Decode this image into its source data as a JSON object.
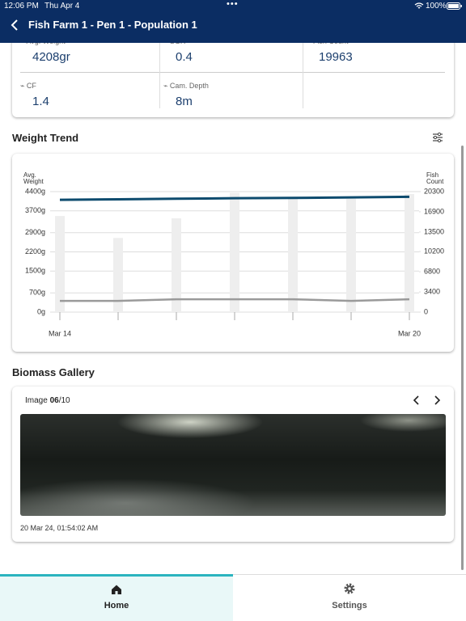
{
  "status_bar": {
    "time": "12:06 PM",
    "date": "Thu Apr 4",
    "battery": "100%"
  },
  "header": {
    "title": "Fish Farm 1 - Pen 1 - Population 1"
  },
  "metrics": [
    {
      "label": "Avg. Weight",
      "value": "4208gr"
    },
    {
      "label": "SGR",
      "value": "0.4"
    },
    {
      "label": "Fish Count",
      "value": "19963"
    },
    {
      "label": "CF",
      "value": "1.4"
    },
    {
      "label": "Cam. Depth",
      "value": "8m"
    }
  ],
  "weight_trend": {
    "title": "Weight Trend"
  },
  "chart_data": {
    "type": "combo",
    "y_label": "Avg. Weight",
    "y2_label": "Fish Count",
    "categories": [
      "Mar 14",
      null,
      null,
      null,
      null,
      null,
      "Mar 20"
    ],
    "ylim": [
      0,
      4400
    ],
    "yticks": [
      {
        "value": 0,
        "label": "0g"
      },
      {
        "value": 700,
        "label": "700g"
      },
      {
        "value": 1500,
        "label": "1500g"
      },
      {
        "value": 2200,
        "label": "2200g"
      },
      {
        "value": 2900,
        "label": "2900g"
      },
      {
        "value": 3700,
        "label": "3700g"
      },
      {
        "value": 4400,
        "label": "4400g"
      }
    ],
    "y2lim": [
      0,
      20300
    ],
    "y2ticks": [
      0,
      3400,
      6800,
      10200,
      13500,
      16900,
      20300
    ],
    "grid": true,
    "series": [
      {
        "type": "bar",
        "axis": "y2",
        "color": "#eeeeee",
        "values": [
          16200,
          12500,
          15800,
          20100,
          19100,
          19100,
          19900
        ]
      },
      {
        "type": "line",
        "color": "#0d4b6e",
        "values": [
          4100,
          4120,
          4140,
          4160,
          4170,
          4190,
          4210
        ]
      },
      {
        "type": "line",
        "color": "#9a9a9a",
        "values": [
          410,
          410,
          470,
          470,
          470,
          410,
          470
        ]
      }
    ]
  },
  "gallery": {
    "title": "Biomass Gallery",
    "image_label": "Image",
    "image_index": "06",
    "image_total": "/10",
    "timestamp": "20 Mar 24, 01:54:02 AM"
  },
  "tab_bar": {
    "tabs": [
      "Home",
      "Settings"
    ]
  }
}
